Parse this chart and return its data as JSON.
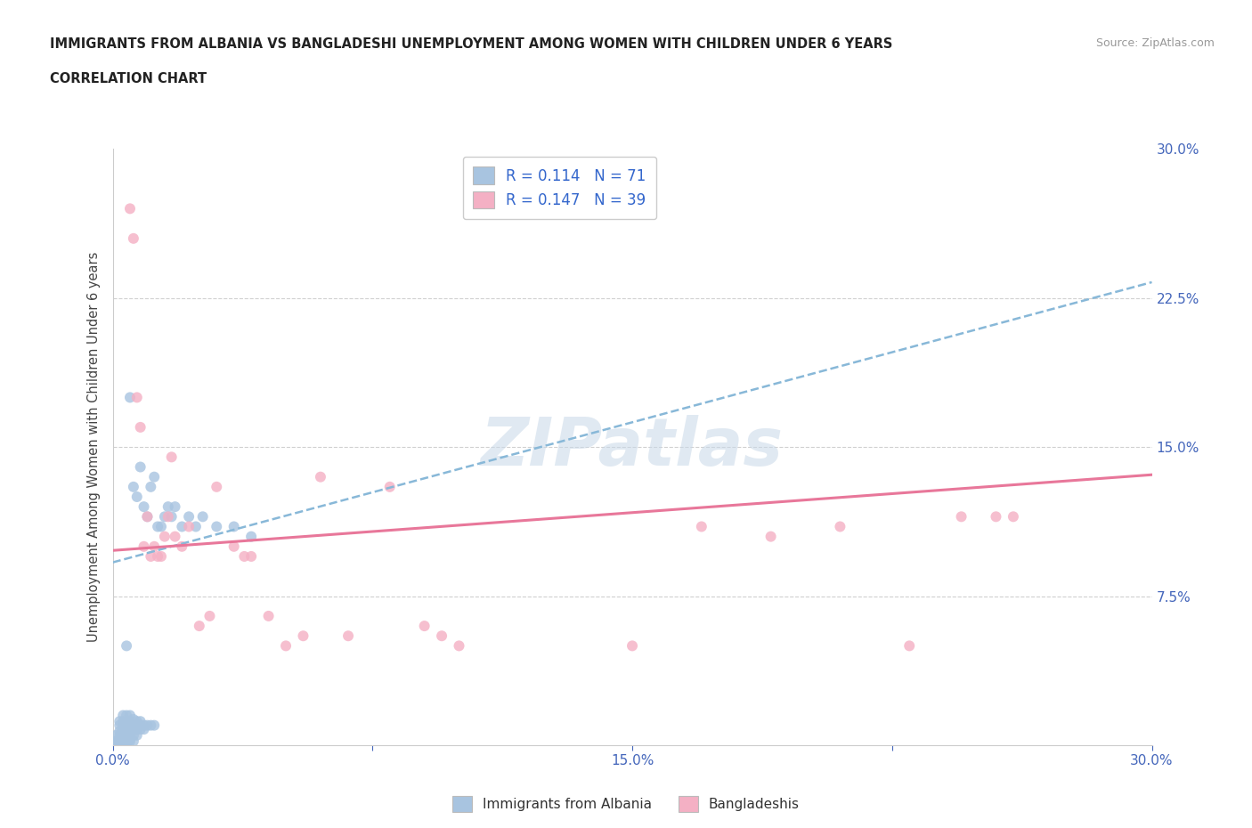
{
  "title_line1": "IMMIGRANTS FROM ALBANIA VS BANGLADESHI UNEMPLOYMENT AMONG WOMEN WITH CHILDREN UNDER 6 YEARS",
  "title_line2": "CORRELATION CHART",
  "source": "Source: ZipAtlas.com",
  "ylabel": "Unemployment Among Women with Children Under 6 years",
  "xlim": [
    0.0,
    0.3
  ],
  "ylim": [
    0.0,
    0.3
  ],
  "color_albania": "#a8c4e0",
  "color_bangladeshi": "#f4b0c4",
  "color_albania_line": "#88b8d8",
  "color_bangladeshi_line": "#e8779a",
  "watermark": "ZIPatlas",
  "watermark_color": "#c8d8e8",
  "r_albania": 0.114,
  "n_albania": 71,
  "r_bangladeshi": 0.147,
  "n_bangladeshi": 39,
  "albania_x": [
    0.001,
    0.001,
    0.001,
    0.002,
    0.002,
    0.002,
    0.002,
    0.002,
    0.002,
    0.002,
    0.003,
    0.003,
    0.003,
    0.003,
    0.003,
    0.003,
    0.003,
    0.003,
    0.004,
    0.004,
    0.004,
    0.004,
    0.004,
    0.004,
    0.004,
    0.004,
    0.005,
    0.005,
    0.005,
    0.005,
    0.005,
    0.005,
    0.005,
    0.005,
    0.006,
    0.006,
    0.006,
    0.006,
    0.006,
    0.006,
    0.007,
    0.007,
    0.007,
    0.007,
    0.007,
    0.008,
    0.008,
    0.008,
    0.008,
    0.009,
    0.009,
    0.009,
    0.01,
    0.01,
    0.011,
    0.011,
    0.012,
    0.012,
    0.013,
    0.014,
    0.015,
    0.016,
    0.017,
    0.018,
    0.02,
    0.022,
    0.024,
    0.026,
    0.03,
    0.035,
    0.04
  ],
  "albania_y": [
    0.001,
    0.002,
    0.005,
    0.001,
    0.002,
    0.003,
    0.005,
    0.007,
    0.01,
    0.012,
    0.001,
    0.002,
    0.003,
    0.005,
    0.008,
    0.01,
    0.012,
    0.015,
    0.001,
    0.002,
    0.003,
    0.005,
    0.008,
    0.01,
    0.015,
    0.05,
    0.002,
    0.003,
    0.005,
    0.008,
    0.01,
    0.012,
    0.015,
    0.175,
    0.002,
    0.005,
    0.008,
    0.01,
    0.013,
    0.13,
    0.005,
    0.008,
    0.01,
    0.012,
    0.125,
    0.008,
    0.01,
    0.012,
    0.14,
    0.008,
    0.01,
    0.12,
    0.01,
    0.115,
    0.01,
    0.13,
    0.01,
    0.135,
    0.11,
    0.11,
    0.115,
    0.12,
    0.115,
    0.12,
    0.11,
    0.115,
    0.11,
    0.115,
    0.11,
    0.11,
    0.105
  ],
  "bangladeshi_x": [
    0.005,
    0.006,
    0.007,
    0.008,
    0.009,
    0.01,
    0.011,
    0.012,
    0.013,
    0.014,
    0.015,
    0.016,
    0.017,
    0.018,
    0.02,
    0.022,
    0.025,
    0.028,
    0.03,
    0.035,
    0.038,
    0.04,
    0.045,
    0.05,
    0.055,
    0.06,
    0.068,
    0.08,
    0.09,
    0.095,
    0.1,
    0.15,
    0.17,
    0.19,
    0.21,
    0.23,
    0.245,
    0.255,
    0.26
  ],
  "bangladeshi_y": [
    0.27,
    0.255,
    0.175,
    0.16,
    0.1,
    0.115,
    0.095,
    0.1,
    0.095,
    0.095,
    0.105,
    0.115,
    0.145,
    0.105,
    0.1,
    0.11,
    0.06,
    0.065,
    0.13,
    0.1,
    0.095,
    0.095,
    0.065,
    0.05,
    0.055,
    0.135,
    0.055,
    0.13,
    0.06,
    0.055,
    0.05,
    0.05,
    0.11,
    0.105,
    0.11,
    0.05,
    0.115,
    0.115,
    0.115
  ]
}
